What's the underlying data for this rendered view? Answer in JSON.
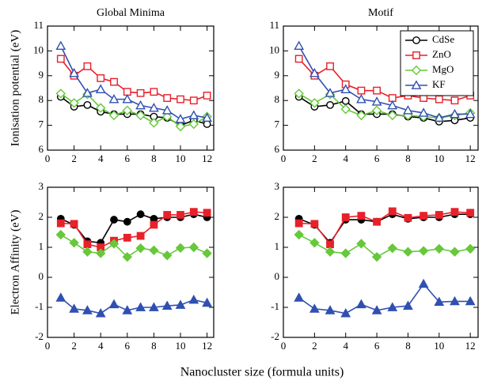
{
  "xlabel": "Nanocluster size (formula units)",
  "chart_data": [
    {
      "type": "line",
      "title": "Global Minima",
      "ylabel": "Ionisation potential (eV)",
      "markers_filled": false,
      "x": [
        1,
        2,
        3,
        4,
        5,
        6,
        7,
        8,
        9,
        10,
        11,
        12
      ],
      "xlim": [
        0,
        12.5
      ],
      "xticks": [
        0,
        2,
        4,
        6,
        8,
        10,
        12
      ],
      "ylim": [
        6,
        11
      ],
      "yticks": [
        6,
        7,
        8,
        9,
        10,
        11
      ],
      "series": [
        {
          "name": "CdSe",
          "color": "#000000",
          "marker": "circle",
          "values": [
            8.15,
            7.75,
            7.82,
            7.55,
            7.45,
            7.45,
            7.45,
            7.35,
            7.3,
            7.0,
            7.2,
            7.05
          ]
        },
        {
          "name": "ZnO",
          "color": "#e8202a",
          "marker": "square",
          "values": [
            9.68,
            9.0,
            9.38,
            8.9,
            8.75,
            8.35,
            8.3,
            8.35,
            8.1,
            8.05,
            8.0,
            8.2
          ]
        },
        {
          "name": "MgO",
          "color": "#66c83a",
          "marker": "diamond",
          "values": [
            8.28,
            7.9,
            8.25,
            7.7,
            7.4,
            7.6,
            7.4,
            7.1,
            7.35,
            6.95,
            7.05,
            7.35
          ]
        },
        {
          "name": "KF",
          "color": "#3050b0",
          "marker": "triangle",
          "values": [
            10.2,
            9.1,
            8.3,
            8.45,
            8.05,
            8.05,
            7.8,
            7.7,
            7.6,
            7.25,
            7.4,
            7.3
          ]
        }
      ]
    },
    {
      "type": "line",
      "title": "Motif",
      "legend": "upper right",
      "markers_filled": false,
      "x": [
        1,
        2,
        3,
        4,
        5,
        6,
        7,
        8,
        9,
        10,
        11,
        12
      ],
      "xlim": [
        0,
        12.5
      ],
      "xticks": [
        0,
        2,
        4,
        6,
        8,
        10,
        12
      ],
      "ylim": [
        6,
        11
      ],
      "yticks": [
        6,
        7,
        8,
        9,
        10,
        11
      ],
      "series": [
        {
          "name": "CdSe",
          "color": "#000000",
          "marker": "circle",
          "values": [
            8.15,
            7.75,
            7.82,
            7.98,
            7.45,
            7.45,
            7.45,
            7.35,
            7.3,
            7.15,
            7.2,
            7.3
          ]
        },
        {
          "name": "ZnO",
          "color": "#e8202a",
          "marker": "square",
          "values": [
            9.68,
            9.0,
            9.38,
            8.65,
            8.4,
            8.4,
            8.1,
            8.2,
            8.1,
            8.05,
            8.0,
            8.2
          ]
        },
        {
          "name": "MgO",
          "color": "#66c83a",
          "marker": "diamond",
          "values": [
            8.28,
            7.9,
            8.25,
            7.65,
            7.4,
            7.6,
            7.4,
            7.4,
            7.35,
            7.3,
            7.4,
            7.5
          ]
        },
        {
          "name": "KF",
          "color": "#3050b0",
          "marker": "triangle",
          "values": [
            10.2,
            9.1,
            8.3,
            8.45,
            8.05,
            7.95,
            7.8,
            7.6,
            7.5,
            7.3,
            7.45,
            7.45
          ]
        }
      ]
    },
    {
      "type": "line",
      "ylabel": "Electron Affinity (eV)",
      "markers_filled": true,
      "x": [
        1,
        2,
        3,
        4,
        5,
        6,
        7,
        8,
        9,
        10,
        11,
        12
      ],
      "xlim": [
        0,
        12.5
      ],
      "xticks": [
        0,
        2,
        4,
        6,
        8,
        10,
        12
      ],
      "ylim": [
        -2,
        3
      ],
      "yticks": [
        -2,
        -1,
        0,
        1,
        2,
        3
      ],
      "series": [
        {
          "name": "CdSe",
          "color": "#000000",
          "marker": "circle",
          "values": [
            1.95,
            1.75,
            1.2,
            1.15,
            1.92,
            1.85,
            2.1,
            1.95,
            2.0,
            2.0,
            2.1,
            2.0
          ]
        },
        {
          "name": "ZnO",
          "color": "#e8202a",
          "marker": "square",
          "values": [
            1.8,
            1.78,
            1.1,
            1.0,
            1.22,
            1.32,
            1.38,
            1.75,
            2.08,
            2.08,
            2.18,
            2.15
          ]
        },
        {
          "name": "MgO",
          "color": "#66c83a",
          "marker": "diamond",
          "values": [
            1.42,
            1.15,
            0.85,
            0.8,
            1.12,
            0.68,
            0.97,
            0.9,
            0.73,
            0.98,
            1.0,
            0.8
          ]
        },
        {
          "name": "KF",
          "color": "#3050b0",
          "marker": "triangle",
          "values": [
            -0.68,
            -1.05,
            -1.1,
            -1.2,
            -0.9,
            -1.1,
            -1.0,
            -1.0,
            -0.95,
            -0.92,
            -0.75,
            -0.85
          ]
        }
      ]
    },
    {
      "type": "line",
      "markers_filled": true,
      "x": [
        1,
        2,
        3,
        4,
        5,
        6,
        7,
        8,
        9,
        10,
        11,
        12
      ],
      "xlim": [
        0,
        12.5
      ],
      "xticks": [
        0,
        2,
        4,
        6,
        8,
        10,
        12
      ],
      "ylim": [
        -2,
        3
      ],
      "yticks": [
        -2,
        -1,
        0,
        1,
        2,
        3
      ],
      "series": [
        {
          "name": "CdSe",
          "color": "#000000",
          "marker": "circle",
          "values": [
            1.95,
            1.75,
            1.15,
            1.92,
            1.92,
            1.85,
            2.1,
            1.95,
            2.0,
            2.0,
            2.1,
            2.1
          ]
        },
        {
          "name": "ZnO",
          "color": "#e8202a",
          "marker": "square",
          "values": [
            1.8,
            1.78,
            1.1,
            2.0,
            2.05,
            1.85,
            2.2,
            1.98,
            2.05,
            2.08,
            2.18,
            2.15
          ]
        },
        {
          "name": "MgO",
          "color": "#66c83a",
          "marker": "diamond",
          "values": [
            1.42,
            1.15,
            0.85,
            0.8,
            1.12,
            0.68,
            0.97,
            0.85,
            0.88,
            0.95,
            0.85,
            0.95
          ]
        },
        {
          "name": "KF",
          "color": "#3050b0",
          "marker": "triangle",
          "values": [
            -0.68,
            -1.05,
            -1.1,
            -1.2,
            -0.9,
            -1.1,
            -1.0,
            -0.95,
            -0.22,
            -0.82,
            -0.8,
            -0.8
          ]
        }
      ]
    }
  ]
}
